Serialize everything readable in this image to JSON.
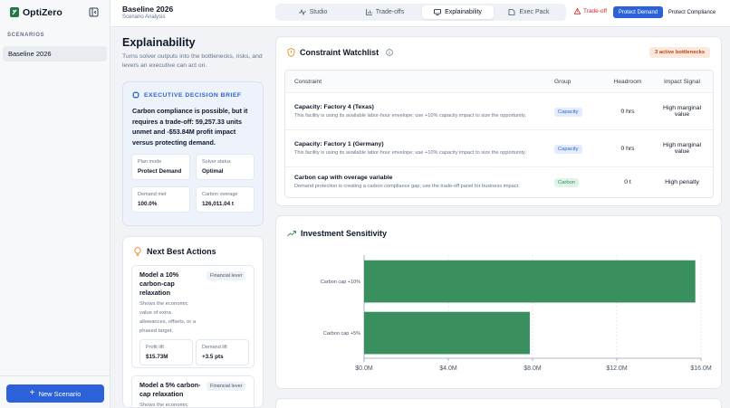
{
  "app": {
    "name": "OptiZero"
  },
  "sidebar": {
    "section_label": "SCENARIOS",
    "items": [
      {
        "label": "Baseline 2026"
      }
    ],
    "new_button": "New Scenario"
  },
  "header": {
    "title": "Baseline 2026",
    "subtitle": "Scenario Analysis",
    "tabs": [
      {
        "label": "Studio"
      },
      {
        "label": "Trade-offs"
      },
      {
        "label": "Explainability"
      },
      {
        "label": "Exec Pack"
      }
    ],
    "active_tab": "Explainability",
    "tradeoff_flag": "Trade-off",
    "modes": [
      {
        "label": "Protect Demand"
      },
      {
        "label": "Protect Compliance"
      }
    ],
    "active_mode": "Protect Demand"
  },
  "explainability": {
    "title": "Explainability",
    "description": "Turns solver outputs into the bottlenecks, risks, and levers an executive can act on."
  },
  "brief": {
    "heading": "EXECUTIVE DECISION BRIEF",
    "body": "Carbon compliance is possible, but it requires a trade-off: 59,257.33 units unmet and -$53.84M profit impact versus protecting demand.",
    "kpis": [
      {
        "label": "Plan mode",
        "value": "Protect Demand"
      },
      {
        "label": "Solver status",
        "value": "Optimal"
      },
      {
        "label": "Demand met",
        "value": "100.0%"
      },
      {
        "label": "Carbon overage",
        "value": "126,011.04 t"
      }
    ]
  },
  "next_actions": {
    "title": "Next Best Actions",
    "cards": [
      {
        "title_lines": [
          "Model a 10%",
          "carbon-cap",
          "relaxation"
        ],
        "tag": "Financial lever",
        "desc_lines": [
          "Shows the economic",
          "value of extra",
          "allowances, offsets, or a",
          "phased target."
        ],
        "metrics": [
          {
            "label": "Profit lift",
            "value": "$15.73M"
          },
          {
            "label": "Demand lift",
            "value": "+3.5 pts"
          }
        ]
      },
      {
        "title_lines": [
          "Model a 5% carbon-",
          "cap relaxation"
        ],
        "tag": "Financial lever",
        "desc_lines": [
          "Shows the economic"
        ],
        "metrics": []
      }
    ]
  },
  "watchlist": {
    "title": "Constraint Watchlist",
    "badge": "3 active bottlenecks",
    "columns": [
      "Constraint",
      "Group",
      "Headroom",
      "Impact Signal"
    ],
    "rows": [
      {
        "name": "Capacity: Factory 4 (Texas)",
        "desc": "This facility is using its available labor-hour envelope; use +10% capacity impact to size the opportunity.",
        "group": "Capacity",
        "headroom": "0 hrs",
        "impact_lines": [
          "High marginal",
          "value"
        ]
      },
      {
        "name": "Capacity: Factory 1 (Germany)",
        "desc": "This facility is using its available labor-hour envelope; use +10% capacity impact to size the opportunity.",
        "group": "Capacity",
        "headroom": "0 hrs",
        "impact_lines": [
          "High marginal",
          "value"
        ]
      },
      {
        "name": "Carbon cap with overage variable",
        "desc": "Demand protection is creating a carbon compliance gap; use the trade-off panel for business impact.",
        "group": "Carbon",
        "headroom": "0 t",
        "impact_lines": [
          "High penalty"
        ]
      }
    ]
  },
  "colors": {
    "accent": "#2b62d9",
    "bar": "#3a8f5f",
    "capacity_tag_bg": "#e3ecfb",
    "capacity_tag_fg": "#2b62d9",
    "carbon_tag_bg": "#e1f3e8",
    "carbon_tag_fg": "#2f8a55"
  },
  "chart_data": {
    "type": "bar",
    "orientation": "horizontal",
    "title": "Investment Sensitivity",
    "categories": [
      "Carbon cap +10%",
      "Carbon cap +5%"
    ],
    "values": [
      15.73,
      7.87
    ],
    "xlim": [
      0,
      16
    ],
    "xticks": [
      0,
      4,
      8,
      12,
      16
    ],
    "xtick_labels": [
      "$0.0M",
      "$4.0M",
      "$8.0M",
      "$12.0M",
      "$16.0M"
    ],
    "grid": true
  }
}
